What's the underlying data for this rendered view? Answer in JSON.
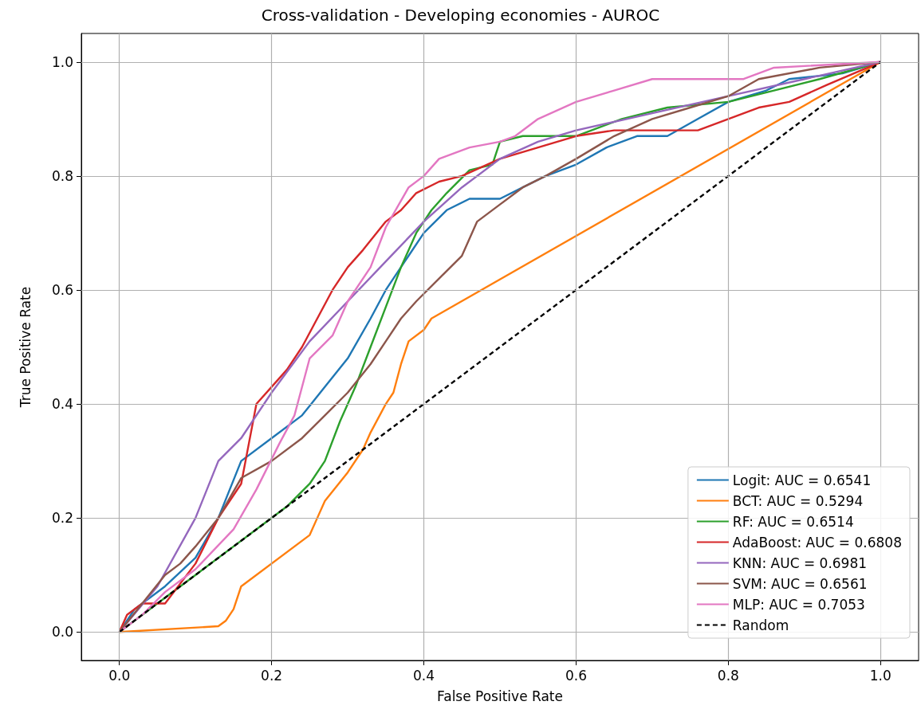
{
  "chart_data": {
    "type": "line",
    "title": "Cross-validation - Developing economies - AUROC",
    "xlabel": "False Positive Rate",
    "ylabel": "True Positive Rate",
    "xlim": [
      -0.05,
      1.05
    ],
    "ylim": [
      -0.05,
      1.05
    ],
    "xticks": [
      {
        "value": 0,
        "label": "0.0"
      },
      {
        "value": 0.2,
        "label": "0.2"
      },
      {
        "value": 0.4,
        "label": "0.4"
      },
      {
        "value": 0.6,
        "label": "0.6"
      },
      {
        "value": 0.8,
        "label": "0.8"
      },
      {
        "value": 1,
        "label": "1.0"
      }
    ],
    "yticks": [
      {
        "value": 0,
        "label": "0.0"
      },
      {
        "value": 0.2,
        "label": "0.2"
      },
      {
        "value": 0.4,
        "label": "0.4"
      },
      {
        "value": 0.6,
        "label": "0.6"
      },
      {
        "value": 0.8,
        "label": "0.8"
      },
      {
        "value": 1,
        "label": "1.0"
      }
    ],
    "grid": true,
    "legend": "bottom right",
    "marker": "none",
    "series": [
      {
        "name": "Logit: AUC = 0.6541",
        "color": "#1f77b4",
        "x": [
          0,
          0.02,
          0.06,
          0.1,
          0.13,
          0.16,
          0.2,
          0.24,
          0.27,
          0.3,
          0.33,
          0.35,
          0.38,
          0.4,
          0.43,
          0.46,
          0.5,
          0.53,
          0.56,
          0.6,
          0.64,
          0.68,
          0.72,
          0.76,
          0.8,
          0.85,
          0.88,
          0.95,
          1
        ],
        "values": [
          0,
          0.04,
          0.08,
          0.13,
          0.2,
          0.3,
          0.34,
          0.38,
          0.43,
          0.48,
          0.55,
          0.6,
          0.66,
          0.7,
          0.74,
          0.76,
          0.76,
          0.78,
          0.8,
          0.82,
          0.85,
          0.87,
          0.87,
          0.9,
          0.93,
          0.95,
          0.97,
          0.98,
          1
        ]
      },
      {
        "name": "BCT: AUC = 0.5294",
        "color": "#ff7f0e",
        "x": [
          0,
          0.13,
          0.14,
          0.15,
          0.16,
          0.25,
          0.26,
          0.27,
          0.3,
          0.32,
          0.33,
          0.35,
          0.36,
          0.37,
          0.38,
          0.4,
          0.41,
          1
        ],
        "values": [
          0,
          0.01,
          0.02,
          0.04,
          0.08,
          0.17,
          0.2,
          0.23,
          0.28,
          0.32,
          0.35,
          0.4,
          0.42,
          0.47,
          0.51,
          0.53,
          0.55,
          1
        ]
      },
      {
        "name": "RF: AUC = 0.6514",
        "color": "#2ca02c",
        "x": [
          0,
          0.03,
          0.06,
          0.1,
          0.15,
          0.19,
          0.22,
          0.25,
          0.27,
          0.29,
          0.31,
          0.33,
          0.35,
          0.37,
          0.39,
          0.41,
          0.43,
          0.46,
          0.49,
          0.5,
          0.53,
          0.6,
          0.66,
          0.72,
          0.8,
          0.86,
          0.92,
          1
        ],
        "values": [
          0,
          0.03,
          0.06,
          0.1,
          0.15,
          0.19,
          0.22,
          0.26,
          0.3,
          0.37,
          0.43,
          0.5,
          0.57,
          0.64,
          0.7,
          0.74,
          0.77,
          0.81,
          0.82,
          0.86,
          0.87,
          0.87,
          0.9,
          0.92,
          0.93,
          0.95,
          0.97,
          1
        ]
      },
      {
        "name": "AdaBoost: AUC = 0.6808",
        "color": "#d62728",
        "x": [
          0,
          0.01,
          0.03,
          0.06,
          0.1,
          0.13,
          0.16,
          0.17,
          0.18,
          0.2,
          0.22,
          0.24,
          0.26,
          0.28,
          0.3,
          0.32,
          0.35,
          0.37,
          0.39,
          0.42,
          0.45,
          0.5,
          0.55,
          0.6,
          0.65,
          0.7,
          0.76,
          0.8,
          0.84,
          0.88,
          0.93,
          1
        ],
        "values": [
          0,
          0.03,
          0.05,
          0.05,
          0.12,
          0.2,
          0.26,
          0.33,
          0.4,
          0.43,
          0.46,
          0.5,
          0.55,
          0.6,
          0.64,
          0.67,
          0.72,
          0.74,
          0.77,
          0.79,
          0.8,
          0.83,
          0.85,
          0.87,
          0.88,
          0.88,
          0.88,
          0.9,
          0.92,
          0.93,
          0.96,
          1
        ]
      },
      {
        "name": "KNN: AUC = 0.6981",
        "color": "#9467bd",
        "x": [
          0,
          0.05,
          0.1,
          0.13,
          0.16,
          0.2,
          0.25,
          0.3,
          0.35,
          0.4,
          0.45,
          0.5,
          0.55,
          0.6,
          0.7,
          0.8,
          0.9,
          1
        ],
        "values": [
          0,
          0.08,
          0.2,
          0.3,
          0.34,
          0.42,
          0.51,
          0.58,
          0.65,
          0.72,
          0.78,
          0.83,
          0.86,
          0.88,
          0.91,
          0.94,
          0.97,
          1
        ]
      },
      {
        "name": "SVM: AUC = 0.6561",
        "color": "#8c564b",
        "x": [
          0,
          0.03,
          0.06,
          0.08,
          0.1,
          0.13,
          0.16,
          0.2,
          0.24,
          0.27,
          0.3,
          0.33,
          0.35,
          0.37,
          0.39,
          0.42,
          0.45,
          0.47,
          0.5,
          0.53,
          0.56,
          0.6,
          0.65,
          0.7,
          0.75,
          0.8,
          0.84,
          0.92,
          1
        ],
        "values": [
          0,
          0.05,
          0.1,
          0.12,
          0.15,
          0.2,
          0.27,
          0.3,
          0.34,
          0.38,
          0.42,
          0.47,
          0.51,
          0.55,
          0.58,
          0.62,
          0.66,
          0.72,
          0.75,
          0.78,
          0.8,
          0.83,
          0.87,
          0.9,
          0.92,
          0.94,
          0.97,
          0.99,
          1
        ]
      },
      {
        "name": "MLP: AUC = 0.7053",
        "color": "#e377c2",
        "x": [
          0,
          0.03,
          0.06,
          0.1,
          0.15,
          0.18,
          0.21,
          0.23,
          0.25,
          0.28,
          0.3,
          0.33,
          0.35,
          0.38,
          0.4,
          0.42,
          0.46,
          0.5,
          0.52,
          0.55,
          0.6,
          0.65,
          0.7,
          0.75,
          0.82,
          0.86,
          1
        ],
        "values": [
          0,
          0.03,
          0.07,
          0.11,
          0.18,
          0.25,
          0.33,
          0.38,
          0.48,
          0.52,
          0.58,
          0.64,
          0.71,
          0.78,
          0.8,
          0.83,
          0.85,
          0.86,
          0.87,
          0.9,
          0.93,
          0.95,
          0.97,
          0.97,
          0.97,
          0.99,
          1
        ]
      },
      {
        "name": "Random",
        "color": "#000000",
        "line_style": "dashed",
        "x": [
          0,
          1
        ],
        "values": [
          0,
          1
        ]
      }
    ]
  }
}
